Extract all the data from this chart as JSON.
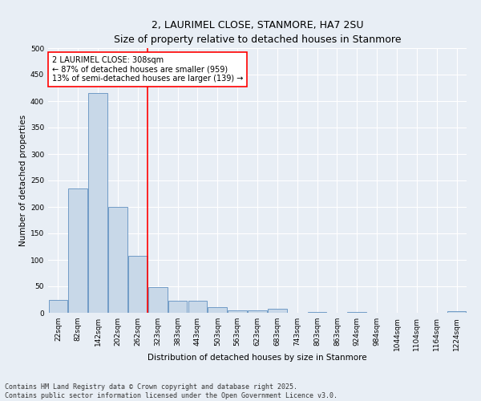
{
  "title": "2, LAURIMEL CLOSE, STANMORE, HA7 2SU",
  "subtitle": "Size of property relative to detached houses in Stanmore",
  "xlabel": "Distribution of detached houses by size in Stanmore",
  "ylabel": "Number of detached properties",
  "categories": [
    "22sqm",
    "82sqm",
    "142sqm",
    "202sqm",
    "262sqm",
    "323sqm",
    "383sqm",
    "443sqm",
    "503sqm",
    "563sqm",
    "623sqm",
    "683sqm",
    "743sqm",
    "803sqm",
    "863sqm",
    "924sqm",
    "984sqm",
    "1044sqm",
    "1104sqm",
    "1164sqm",
    "1224sqm"
  ],
  "values": [
    25,
    235,
    415,
    200,
    107,
    48,
    23,
    23,
    10,
    5,
    5,
    7,
    0,
    2,
    0,
    1,
    0,
    0,
    0,
    0,
    3
  ],
  "bar_color": "#c8d8e8",
  "bar_edge_color": "#6090c0",
  "vline_x_idx": 5,
  "vline_color": "red",
  "annotation_text": "2 LAURIMEL CLOSE: 308sqm\n← 87% of detached houses are smaller (959)\n13% of semi-detached houses are larger (139) →",
  "annotation_box_color": "white",
  "annotation_box_edge_color": "red",
  "ylim": [
    0,
    500
  ],
  "yticks": [
    0,
    50,
    100,
    150,
    200,
    250,
    300,
    350,
    400,
    450,
    500
  ],
  "background_color": "#e8eef5",
  "plot_background_color": "#e8eef5",
  "grid_color": "white",
  "footnote": "Contains HM Land Registry data © Crown copyright and database right 2025.\nContains public sector information licensed under the Open Government Licence v3.0.",
  "title_fontsize": 9,
  "xlabel_fontsize": 7.5,
  "ylabel_fontsize": 7.5,
  "tick_fontsize": 6.5,
  "annotation_fontsize": 7,
  "footnote_fontsize": 6
}
